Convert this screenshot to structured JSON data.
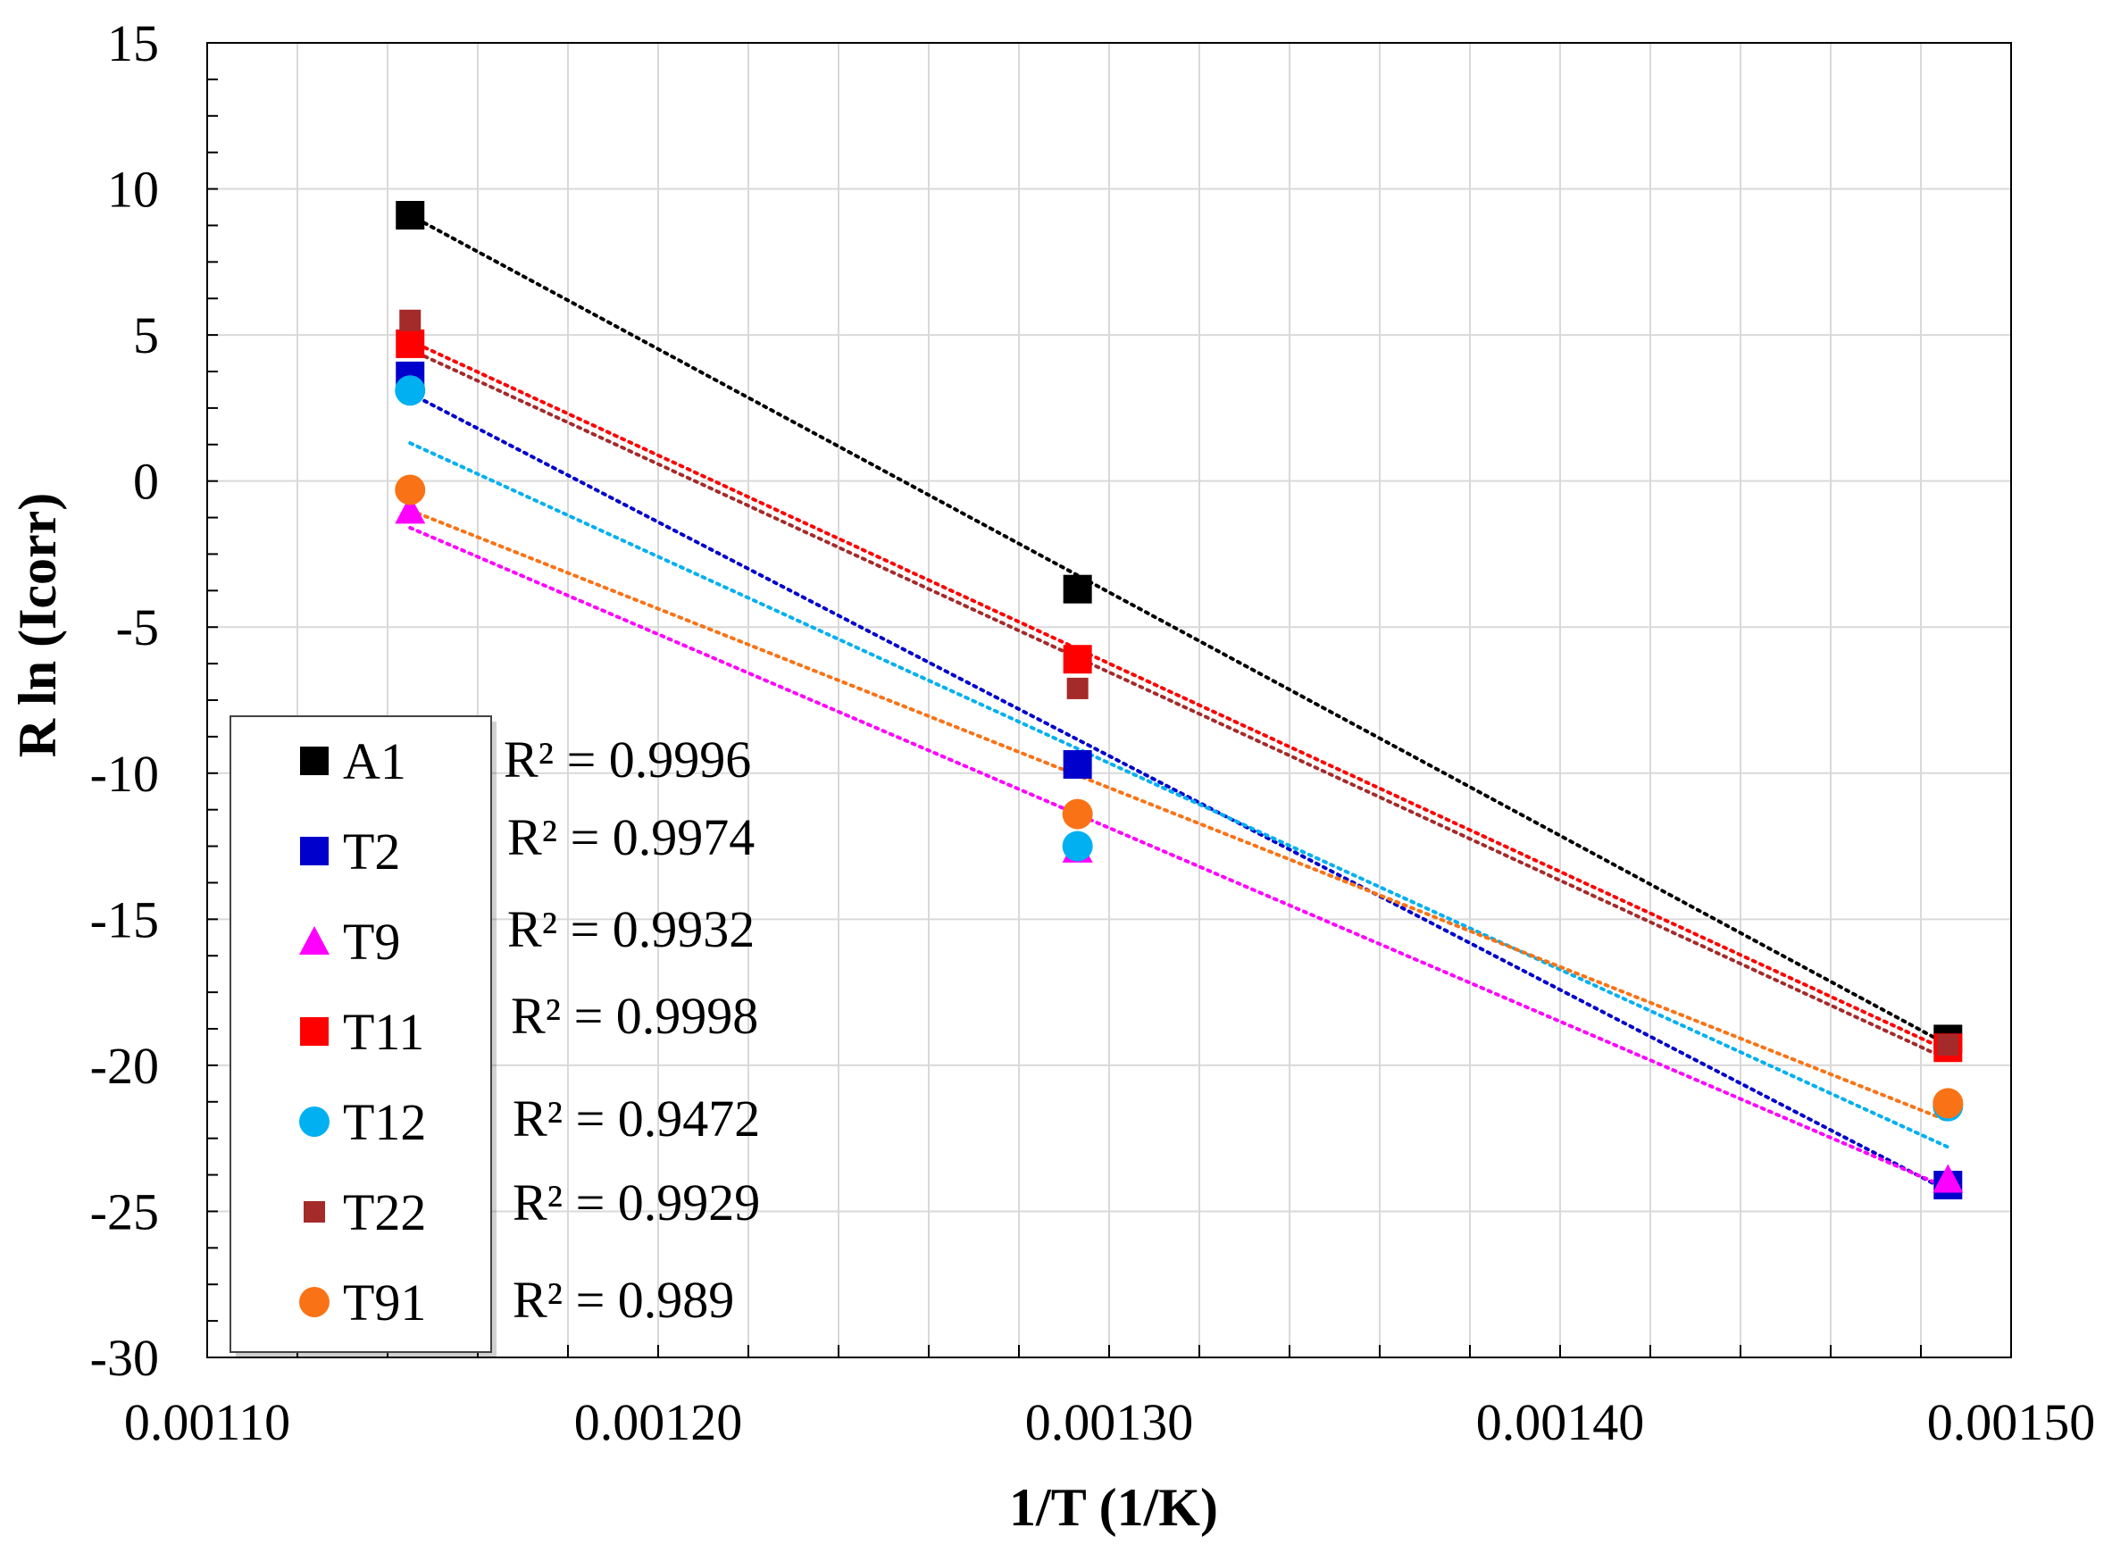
{
  "chart_data": {
    "type": "scatter",
    "title": "",
    "xlabel": "1/T (1/K)",
    "ylabel": "R ln (Icorr)",
    "xlim": [
      0.0011,
      0.0015
    ],
    "ylim": [
      -30,
      15
    ],
    "x_tick_labels": [
      "0.00110",
      "0.00120",
      "0.00130",
      "0.00140",
      "0.00150"
    ],
    "x_ticks": [
      0.0011,
      0.0012,
      0.0013,
      0.0014,
      0.0015
    ],
    "y_ticks": [
      15,
      10,
      5,
      0,
      -5,
      -10,
      -15,
      -20,
      -25,
      -30
    ],
    "y_tick_labels": [
      "15",
      "10",
      "5",
      "0",
      "-5",
      "-10",
      "-15",
      "-20",
      "-25",
      "-30"
    ],
    "grid": true,
    "legend_position": "bottom-left",
    "series": [
      {
        "name": "A1",
        "marker": "square",
        "color": "#000000",
        "x": [
          0.001145,
          0.001293,
          0.001486
        ],
        "y": [
          9.1,
          -3.7,
          -19.1
        ],
        "fit": {
          "start": [
            0.001145,
            9.1
          ],
          "end": [
            0.001486,
            -19.3
          ]
        }
      },
      {
        "name": "T2",
        "marker": "square",
        "color": "#0000CC",
        "x": [
          0.001145,
          0.001293,
          0.001486
        ],
        "y": [
          3.6,
          -9.7,
          -24.1
        ],
        "fit": {
          "start": [
            0.001145,
            3.0
          ],
          "end": [
            0.001486,
            -24.3
          ]
        }
      },
      {
        "name": "T9",
        "marker": "triangle",
        "color": "#FF00FF",
        "x": [
          0.001145,
          0.001293,
          0.001486
        ],
        "y": [
          -1.0,
          -12.6,
          -23.9
        ],
        "fit": {
          "start": [
            0.001145,
            -1.6
          ],
          "end": [
            0.001486,
            -24.2
          ]
        }
      },
      {
        "name": "T11",
        "marker": "square",
        "color": "#FF0000",
        "x": [
          0.001145,
          0.001293,
          0.001486
        ],
        "y": [
          4.7,
          -6.1,
          -19.4
        ],
        "fit": {
          "start": [
            0.001145,
            4.8
          ],
          "end": [
            0.001486,
            -19.5
          ]
        }
      },
      {
        "name": "T12",
        "marker": "circle",
        "color": "#00B0F0",
        "x": [
          0.001145,
          0.001293,
          0.001486
        ],
        "y": [
          3.1,
          -12.5,
          -21.4
        ],
        "fit": {
          "start": [
            0.001145,
            1.3
          ],
          "end": [
            0.001486,
            -22.8
          ]
        }
      },
      {
        "name": "T22",
        "marker": "small-square",
        "color": "#A52A2A",
        "x": [
          0.001145,
          0.001293,
          0.001486
        ],
        "y": [
          5.5,
          -7.1,
          -19.3
        ],
        "fit": {
          "start": [
            0.001145,
            4.5
          ],
          "end": [
            0.001486,
            -19.8
          ]
        }
      },
      {
        "name": "T91",
        "marker": "circle",
        "color": "#F97316",
        "x": [
          0.001145,
          0.001293,
          0.001486
        ],
        "y": [
          -0.3,
          -11.4,
          -21.3
        ],
        "fit": {
          "start": [
            0.001145,
            -1.0
          ],
          "end": [
            0.001486,
            -21.9
          ]
        }
      }
    ],
    "annotations": [
      "R² = 0.9996",
      "R² = 0.9974",
      "R² = 0.9932",
      "R² = 0.9998",
      "R² = 0.9472",
      "R² = 0.9929",
      "R² = 0.989"
    ]
  }
}
